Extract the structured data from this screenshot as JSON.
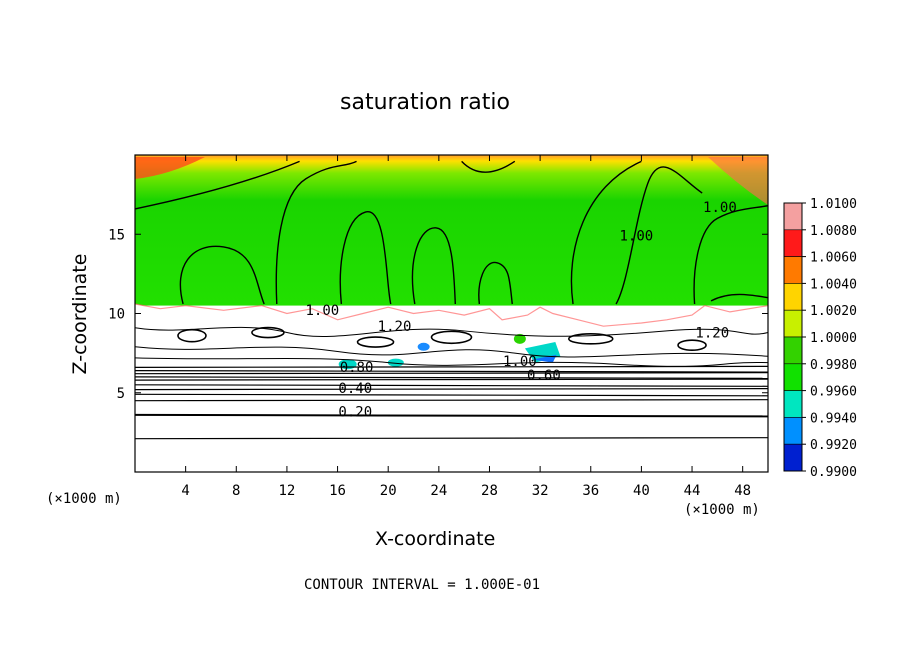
{
  "chart_data": {
    "type": "heatmap",
    "title": "saturation ratio",
    "xlabel": "X-coordinate",
    "ylabel": "Z-coordinate",
    "x_unit_left": "(×1000 m)",
    "x_unit_right": "(×1000 m)",
    "xlim": [
      0,
      50
    ],
    "ylim": [
      0,
      20
    ],
    "x_ticks": [
      4,
      8,
      12,
      16,
      20,
      24,
      28,
      32,
      36,
      40,
      44,
      48
    ],
    "y_ticks": [
      5,
      10,
      15
    ],
    "footer": "CONTOUR INTERVAL = 1.000E-01",
    "colorbar": {
      "levels": [
        "1.0100",
        "1.0080",
        "1.0060",
        "1.0040",
        "1.0020",
        "1.0000",
        "0.9980",
        "0.9960",
        "0.9940",
        "0.9920",
        "0.9900"
      ],
      "colors": [
        "#f4a0a0",
        "#ff1a1a",
        "#ff7a00",
        "#ffd400",
        "#c8f000",
        "#33d200",
        "#11e100",
        "#00e6c0",
        "#0090ff",
        "#0020d0",
        "#5a0090"
      ]
    },
    "layer_boundary_z": 10.5,
    "dry_layer_lines_z": [
      2.1,
      3.6,
      4.5,
      4.9,
      5.2,
      5.5,
      5.8,
      6.0,
      6.2,
      6.4,
      6.6
    ],
    "contour_labels": [
      {
        "text": "1.00",
        "x": 39.6,
        "z": 14.6
      },
      {
        "text": "1.00",
        "x": 46.2,
        "z": 16.4
      },
      {
        "text": "1.00",
        "x": 14.8,
        "z": 9.9
      },
      {
        "text": "1.20",
        "x": 20.5,
        "z": 8.9
      },
      {
        "text": "1.20",
        "x": 45.6,
        "z": 8.5
      },
      {
        "text": "1.00",
        "x": 30.4,
        "z": 6.7
      },
      {
        "text": "0.80",
        "x": 17.5,
        "z": 6.3
      },
      {
        "text": "0.60",
        "x": 32.3,
        "z": 5.8
      },
      {
        "text": "0.40",
        "x": 17.4,
        "z": 5.0
      },
      {
        "text": "0.20",
        "x": 17.4,
        "z": 3.5
      }
    ]
  }
}
